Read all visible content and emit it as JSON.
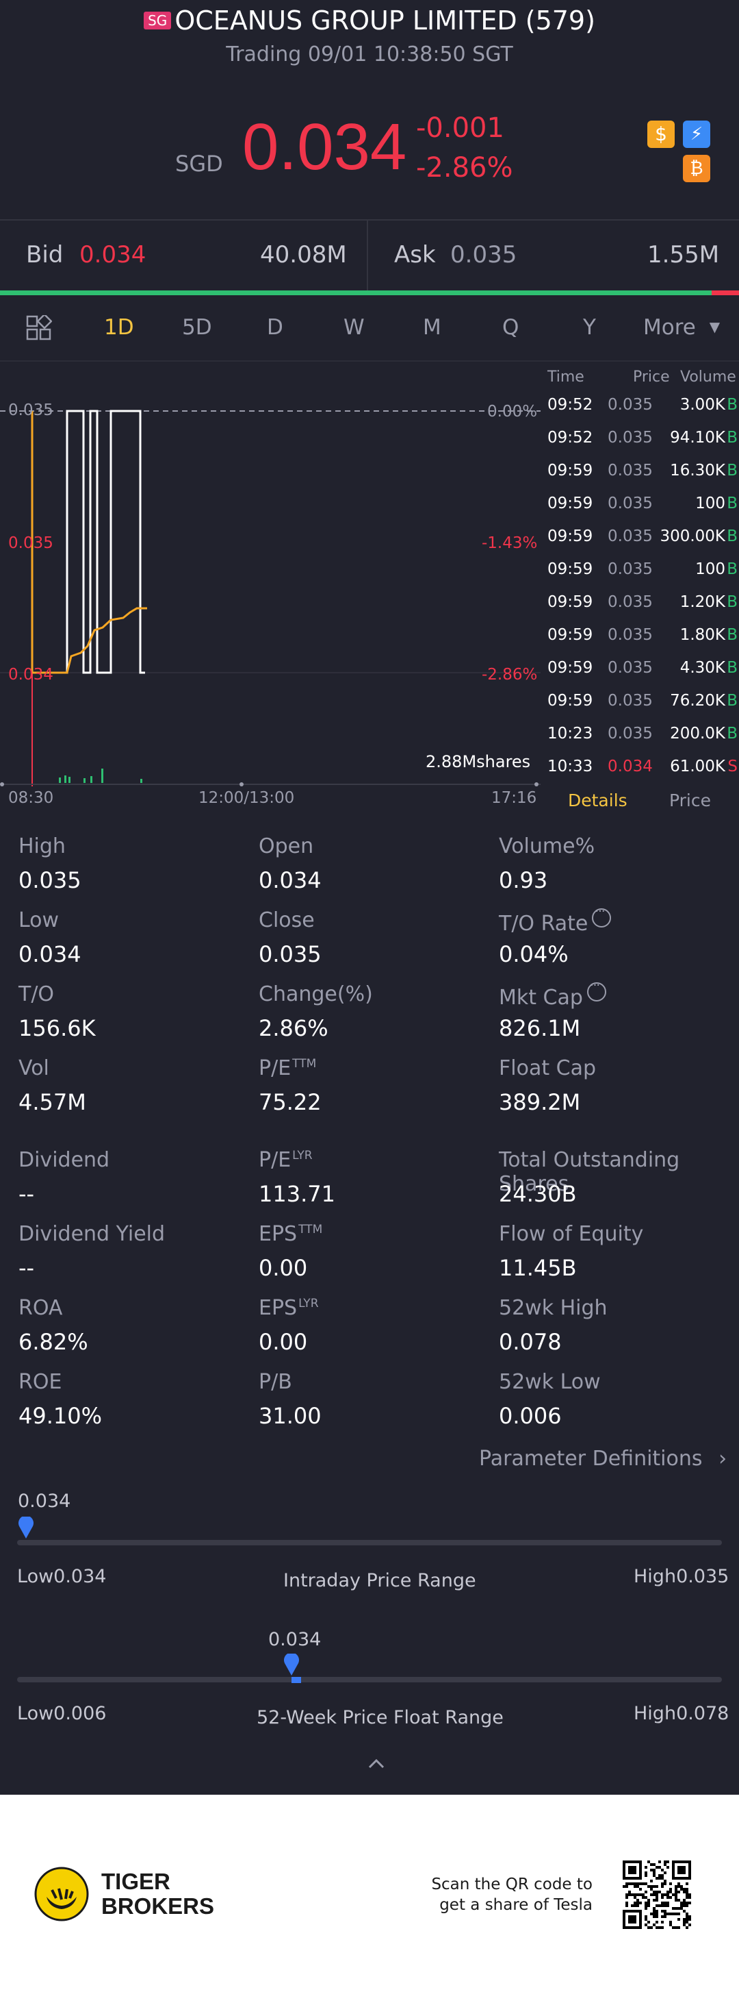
{
  "header": {
    "market_badge": "SG",
    "title": "OCEANUS GROUP LIMITED (579)",
    "status": "Trading 09/01 10:38:50 SGT"
  },
  "quote": {
    "currency": "SGD",
    "price": "0.034",
    "change": "-0.001",
    "change_pct": "-2.86%"
  },
  "badges": [
    "dollar-icon",
    "lightning-icon",
    "bitcoin-icon"
  ],
  "bidask": {
    "bid_label": "Bid",
    "bid_price": "0.034",
    "bid_vol": "40.08M",
    "ask_label": "Ask",
    "ask_price": "0.035",
    "ask_vol": "1.55M"
  },
  "tabs": [
    "1D",
    "5D",
    "D",
    "W",
    "M",
    "Q",
    "Y",
    "More"
  ],
  "selected_tab": "1D",
  "chart": {
    "ref_price": "0.035",
    "mid_price": "0.035",
    "low_price": "0.034",
    "pct_top": "0.00%",
    "pct_mid": "-1.43%",
    "pct_low": "-2.86%",
    "volume_label": "2.88Mshares",
    "time_start": "08:30",
    "time_mid": "12:00/13:00",
    "time_end": "17:16"
  },
  "trades": {
    "headers": {
      "time": "Time",
      "price": "Price",
      "volume": "Volume"
    },
    "rows": [
      {
        "time": "09:52",
        "price": "0.035",
        "vol": "3.00K",
        "side": "B"
      },
      {
        "time": "09:52",
        "price": "0.035",
        "vol": "94.10K",
        "side": "B"
      },
      {
        "time": "09:59",
        "price": "0.035",
        "vol": "16.30K",
        "side": "B"
      },
      {
        "time": "09:59",
        "price": "0.035",
        "vol": "100",
        "side": "B"
      },
      {
        "time": "09:59",
        "price": "0.035",
        "vol": "300.00K",
        "side": "B"
      },
      {
        "time": "09:59",
        "price": "0.035",
        "vol": "100",
        "side": "B"
      },
      {
        "time": "09:59",
        "price": "0.035",
        "vol": "1.20K",
        "side": "B"
      },
      {
        "time": "09:59",
        "price": "0.035",
        "vol": "1.80K",
        "side": "B"
      },
      {
        "time": "09:59",
        "price": "0.035",
        "vol": "4.30K",
        "side": "B"
      },
      {
        "time": "09:59",
        "price": "0.035",
        "vol": "76.20K",
        "side": "B"
      },
      {
        "time": "10:23",
        "price": "0.035",
        "vol": "200.0K",
        "side": "B"
      },
      {
        "time": "10:33",
        "price": "0.034",
        "vol": "61.00K",
        "side": "S"
      }
    ],
    "tab_details": "Details",
    "tab_price": "Price"
  },
  "stats": [
    {
      "label": "High",
      "value": "0.035"
    },
    {
      "label": "Open",
      "value": "0.034"
    },
    {
      "label": "Volume%",
      "value": "0.93"
    },
    {
      "label": "Low",
      "value": "0.034"
    },
    {
      "label": "Close",
      "value": "0.035"
    },
    {
      "label": "T/O Rate",
      "value": "0.04%"
    },
    {
      "label": "T/O",
      "value": "156.6K"
    },
    {
      "label": "Change(%)",
      "value": "2.86%"
    },
    {
      "label": "Mkt Cap",
      "value": "826.1M"
    },
    {
      "label": "Vol",
      "value": "4.57M"
    },
    {
      "label": "P/E",
      "sup": "TTM",
      "value": "75.22"
    },
    {
      "label": "Float Cap",
      "value": "389.2M"
    },
    {
      "label": "Dividend",
      "value": "--"
    },
    {
      "label": "P/E",
      "sup": "LYR",
      "value": "113.71"
    },
    {
      "label": "Total Outstanding Shares",
      "value": "24.30B"
    },
    {
      "label": "Dividend Yield",
      "value": "--"
    },
    {
      "label": "EPS",
      "sup": "TTM",
      "value": "0.00"
    },
    {
      "label": "Flow of Equity",
      "value": "11.45B"
    },
    {
      "label": "ROA",
      "value": "6.82%"
    },
    {
      "label": "EPS",
      "sup": "LYR",
      "value": "0.00"
    },
    {
      "label": "52wk High",
      "value": "0.078"
    },
    {
      "label": "ROE",
      "value": "49.10%"
    },
    {
      "label": "P/B",
      "value": "31.00"
    },
    {
      "label": "52wk Low",
      "value": "0.006"
    }
  ],
  "param_link": "Parameter Definitions",
  "intraday_range": {
    "current": "0.034",
    "low_label": "Low",
    "low": "0.034",
    "high_label": "High",
    "high": "0.035",
    "title": "Intraday Price Range",
    "position": 0.0
  },
  "week52_range": {
    "current": "0.034",
    "low_label": "Low",
    "low": "0.006",
    "high_label": "High",
    "high": "0.078",
    "title": "52-Week Price Float Range",
    "position": 0.389
  },
  "footer": {
    "brand_line1": "TIGER",
    "brand_line2": "BROKERS",
    "qr_text_line1": "Scan the QR code to",
    "qr_text_line2": "get a share of Tesla"
  },
  "colors": {
    "background": "#21222d",
    "down": "#f0354b",
    "up": "#2fbf71",
    "accent": "#f5c542",
    "slider": "#3b7bf6"
  }
}
